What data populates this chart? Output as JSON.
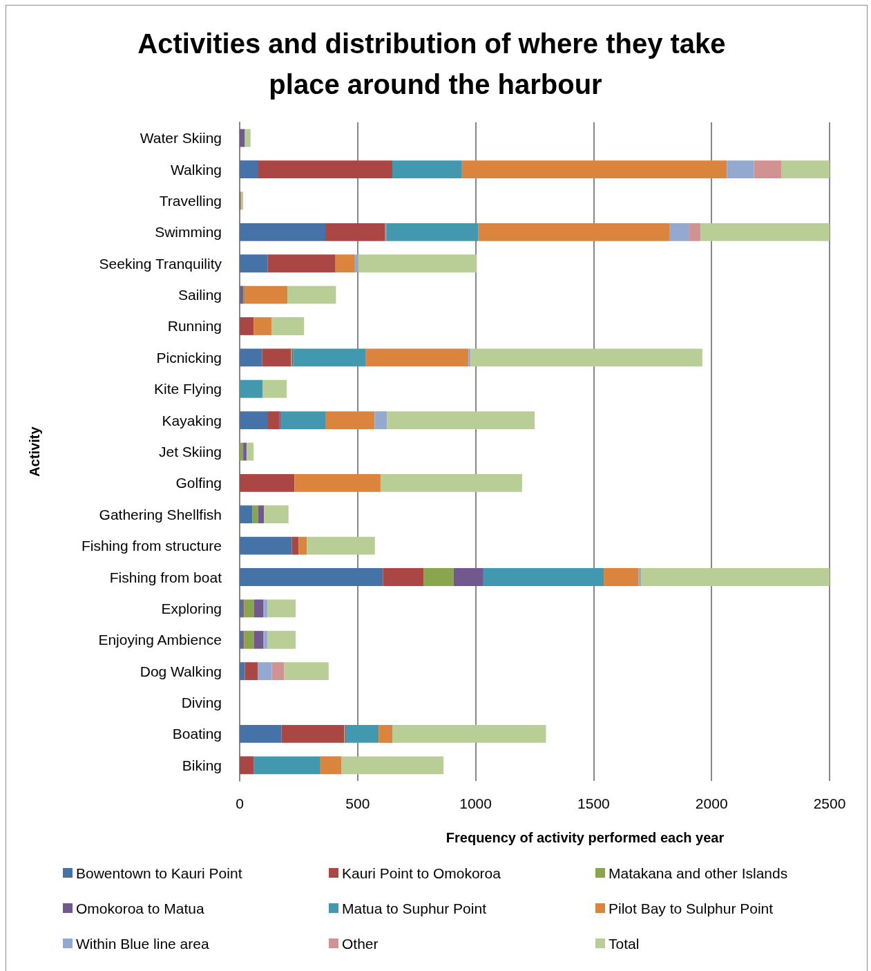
{
  "chart_data": {
    "type": "bar",
    "orientation": "horizontal",
    "stacked": true,
    "title": "Activities and distribution of where they take place around the harbour",
    "xlabel": "Frequency of activity performed each year",
    "ylabel": "Activity",
    "categories": [
      "Water Skiing",
      "Walking",
      "Travelling",
      "Swimming",
      "Seeking Tranquility",
      "Sailing",
      "Running",
      "Picnicking",
      "Kite Flying",
      "Kayaking",
      "Jet Skiing",
      "Golfing",
      "Gathering Shellfish",
      "Fishing from structure",
      "Fishing from boat",
      "Exploring",
      "Enjoying Ambience",
      "Dog Walking",
      "Diving",
      "Boating",
      "Biking"
    ],
    "xlim": [
      0,
      2500
    ],
    "xticks": [
      0,
      500,
      1000,
      1500,
      2000,
      2500
    ],
    "grid": "x",
    "legend": "bottom",
    "series": [
      {
        "name": "Bowentown to Kauri Point",
        "color": "#4572a7",
        "values": [
          null,
          79,
          null,
          363,
          119,
          6,
          null,
          95,
          null,
          120,
          null,
          null,
          53,
          221,
          607,
          15,
          15,
          22,
          null,
          177,
          null
        ]
      },
      {
        "name": "Kauri Point to Omokoroa",
        "color": "#aa4643",
        "values": [
          null,
          568,
          5,
          252,
          287,
          6,
          59,
          123,
          null,
          49,
          null,
          232,
          null,
          29,
          172,
          4,
          4,
          54,
          null,
          266,
          59
        ]
      },
      {
        "name": "Matakana and other Islands",
        "color": "#89a54e",
        "values": [
          null,
          null,
          null,
          4,
          null,
          null,
          null,
          4,
          null,
          null,
          15,
          null,
          25,
          null,
          128,
          41,
          41,
          null,
          null,
          5,
          null
        ]
      },
      {
        "name": "Omokoroa to Matua",
        "color": "#71588f",
        "values": [
          22,
          null,
          null,
          3,
          null,
          4,
          null,
          5,
          null,
          6,
          14,
          null,
          25,
          null,
          126,
          40,
          40,
          null,
          null,
          5,
          null
        ]
      },
      {
        "name": "Matua to Suphur Point",
        "color": "#4198af",
        "values": [
          null,
          295,
          null,
          390,
          null,
          5,
          null,
          306,
          98,
          188,
          null,
          null,
          null,
          null,
          510,
          null,
          null,
          null,
          null,
          136,
          283
        ]
      },
      {
        "name": "Pilot Bay to Sulphur Point",
        "color": "#db843d",
        "values": [
          null,
          1123,
          null,
          809,
          80,
          182,
          76,
          437,
          null,
          209,
          null,
          365,
          null,
          35,
          148,
          3,
          3,
          null,
          null,
          58,
          90
        ]
      },
      {
        "name": "Within Blue line area",
        "color": "#93a9cf",
        "values": [
          null,
          114,
          null,
          82,
          16,
          null,
          null,
          9,
          null,
          53,
          null,
          null,
          null,
          null,
          10,
          15,
          15,
          60,
          null,
          null,
          null
        ]
      },
      {
        "name": "Other",
        "color": "#d19392",
        "values": [
          null,
          116,
          null,
          51,
          null,
          null,
          null,
          null,
          null,
          null,
          null,
          null,
          null,
          null,
          null,
          null,
          null,
          52,
          null,
          null,
          null
        ]
      },
      {
        "name": "Total",
        "color": "#b9cd96",
        "values": [
          24,
          205,
          10,
          546,
          503,
          205,
          138,
          982,
          101,
          625,
          30,
          600,
          104,
          288,
          799,
          119,
          119,
          189,
          null,
          651,
          432
        ]
      }
    ]
  }
}
